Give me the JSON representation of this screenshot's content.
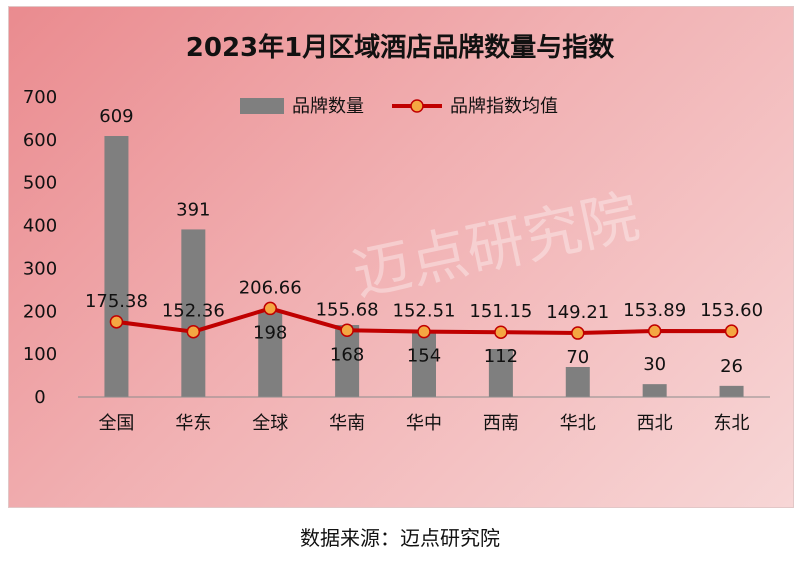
{
  "chart_data": {
    "type": "bar",
    "title": "2023年1月区域酒店品牌数量与指数",
    "categories": [
      "全国",
      "华东",
      "全球",
      "华南",
      "华中",
      "西南",
      "华北",
      "西北",
      "东北"
    ],
    "series": [
      {
        "name": "品牌数量",
        "kind": "bar",
        "color": "#7f7f7f",
        "values": [
          609,
          391,
          198,
          168,
          154,
          112,
          70,
          30,
          26
        ],
        "labels": [
          "609",
          "391",
          "198",
          "168",
          "154",
          "112",
          "70",
          "30",
          "26"
        ]
      },
      {
        "name": "品牌指数均值",
        "kind": "line",
        "color": "#c00000",
        "marker_color": "#f4a742",
        "values": [
          175.38,
          152.36,
          206.66,
          155.68,
          152.51,
          151.15,
          149.21,
          153.89,
          153.6
        ],
        "labels": [
          "175.38",
          "152.36",
          "206.66",
          "155.68",
          "152.51",
          "151.15",
          "149.21",
          "153.89",
          "153.60"
        ]
      }
    ],
    "ylim": [
      0,
      700
    ],
    "yticks": [
      "0",
      "100",
      "200",
      "300",
      "400",
      "500",
      "600",
      "700"
    ],
    "xlabel": "",
    "ylabel": "",
    "grid": false,
    "legend": "top-center"
  },
  "watermark": "迈点研究院",
  "source_text": "数据来源：迈点研究院"
}
